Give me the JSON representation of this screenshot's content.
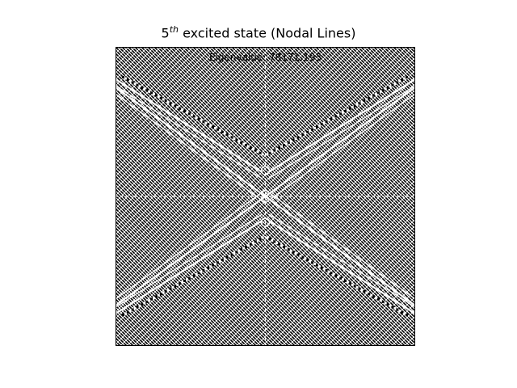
{
  "chart_data": {
    "type": "heatmap",
    "title": {
      "base": "5",
      "superscript": "th",
      "rest": " excited state (Nodal Lines)"
    },
    "annotation": "Eigenvalue: 78171.193",
    "eigenvalue": 78171.193,
    "xlabel": "",
    "ylabel": "",
    "axes_visible": false,
    "grid": false,
    "colormap": [
      "#000000",
      "#ffffff"
    ],
    "pattern": "dense diagonal nodal lines forming an X with mirrored V-shaped bands"
  }
}
